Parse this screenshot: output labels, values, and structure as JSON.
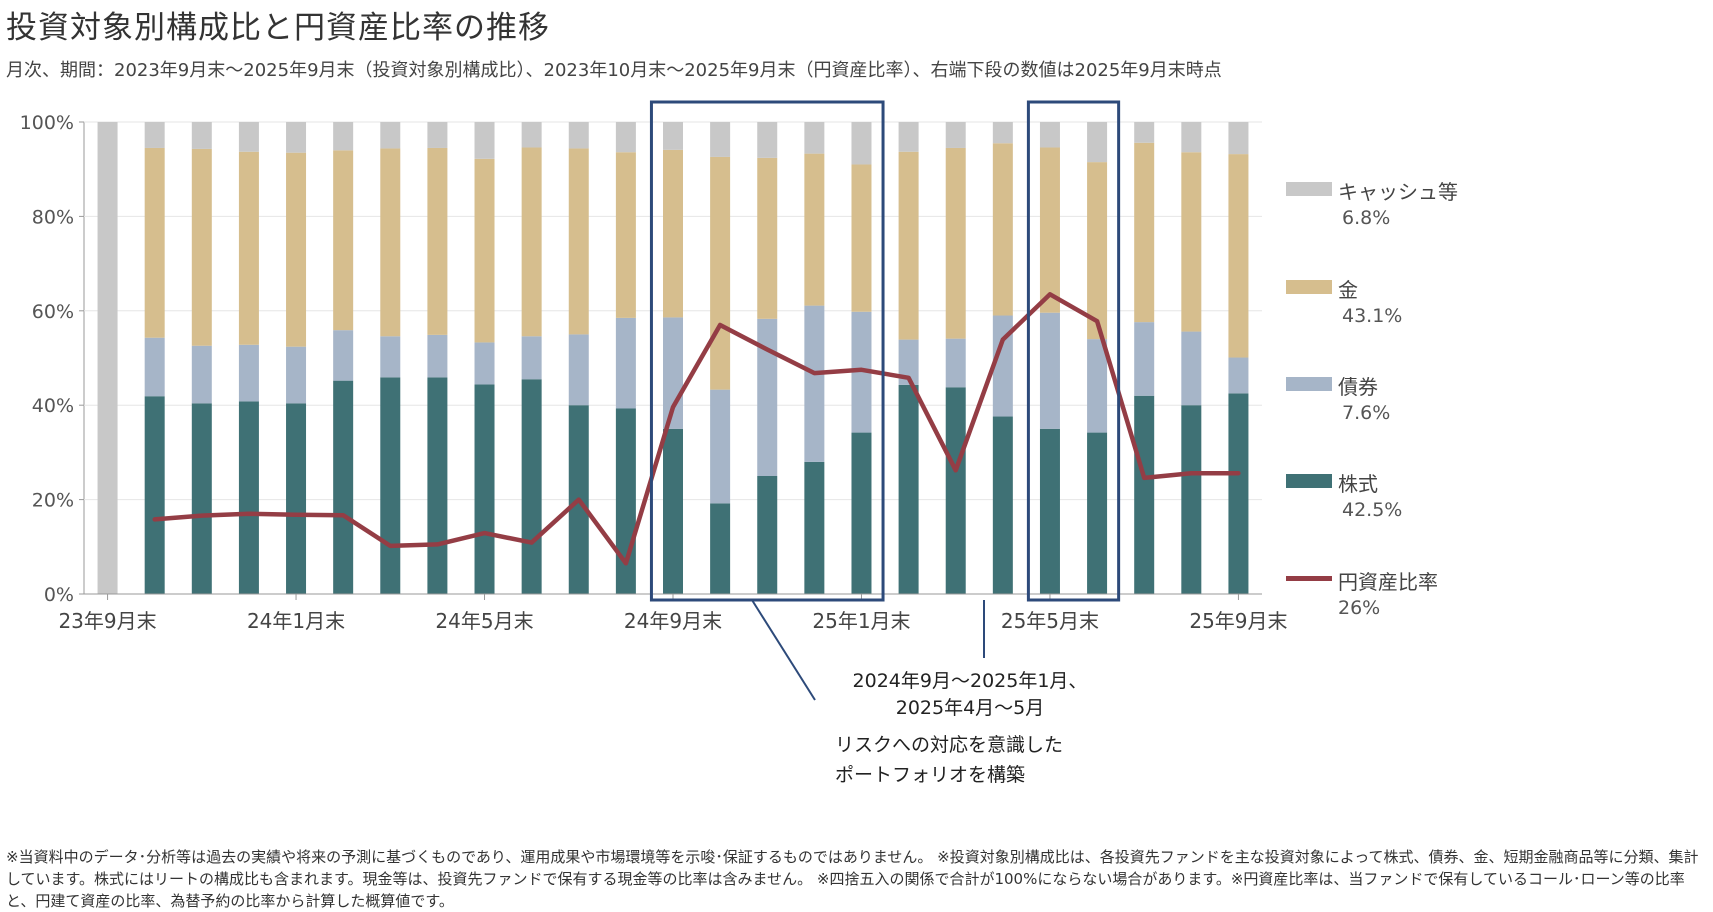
{
  "title": "投資対象別構成比と円資産比率の推移",
  "subtitle": "月次、期間：2023年9月末～2025年9月末（投資対象別構成比）、2023年10月末～2025年9月末（円資産比率）、右端下段の数値は2025年9月末時点",
  "chart_data": {
    "type": "bar",
    "stacked": true,
    "categories": [
      "23年9月末",
      "23年10月末",
      "23年11月末",
      "23年12月末",
      "24年1月末",
      "24年2月末",
      "24年3月末",
      "24年4月末",
      "24年5月末",
      "24年6月末",
      "24年7月末",
      "24年8月末",
      "24年9月末",
      "24年10月末",
      "24年11月末",
      "24年12月末",
      "25年1月末",
      "25年2月末",
      "25年3月末",
      "25年4月末",
      "25年5月末",
      "25年6月末",
      "25年7月末",
      "25年8月末",
      "25年9月末"
    ],
    "x_tick_labels": [
      "23年9月末",
      "24年1月末",
      "24年5月末",
      "24年9月末",
      "25年1月末",
      "25年5月末",
      "25年9月末"
    ],
    "x_tick_indices": [
      0,
      4,
      8,
      12,
      16,
      20,
      24
    ],
    "y_tick_labels": [
      "0%",
      "20%",
      "40%",
      "60%",
      "80%",
      "100%"
    ],
    "ylim": [
      0,
      100
    ],
    "series": [
      {
        "name": "株式",
        "color": "#3f7175",
        "values": [
          0,
          41.9,
          40.4,
          40.8,
          40.4,
          45.2,
          45.9,
          45.9,
          44.4,
          45.5,
          40.0,
          39.3,
          35.0,
          19.2,
          25.0,
          28.0,
          34.2,
          44.3,
          43.8,
          37.6,
          35.0,
          34.2,
          42.0,
          40.0,
          42.5
        ]
      },
      {
        "name": "債券",
        "color": "#a6b5c8",
        "values": [
          0,
          12.4,
          12.2,
          12.0,
          12.0,
          10.7,
          8.7,
          9.0,
          8.9,
          9.1,
          15.0,
          19.2,
          23.6,
          24.1,
          33.3,
          33.1,
          25.6,
          9.6,
          10.3,
          21.4,
          24.6,
          19.8,
          15.6,
          15.6,
          7.6
        ]
      },
      {
        "name": "金",
        "color": "#d6be8e",
        "values": [
          0,
          40.2,
          41.7,
          40.9,
          41.1,
          38.1,
          39.8,
          39.6,
          38.9,
          40.0,
          39.4,
          35.1,
          35.5,
          49.3,
          34.1,
          32.2,
          31.2,
          39.8,
          40.4,
          36.5,
          35.0,
          37.5,
          38.0,
          38.0,
          43.1
        ]
      },
      {
        "name": "キャッシュ等",
        "color": "#c8c8c8",
        "values": [
          100,
          5.5,
          5.7,
          6.3,
          6.5,
          6.0,
          5.6,
          5.5,
          7.8,
          5.4,
          5.6,
          6.4,
          5.9,
          7.4,
          7.6,
          6.7,
          9.0,
          6.3,
          5.5,
          4.5,
          5.4,
          8.5,
          4.4,
          6.4,
          6.8
        ]
      }
    ],
    "line_series": {
      "name": "円資産比率",
      "color": "#943d45",
      "start_index": 1,
      "values": [
        15.8,
        16.6,
        17.0,
        16.8,
        16.7,
        10.2,
        10.5,
        12.9,
        10.9,
        20.0,
        6.5,
        39.6,
        57.0,
        51.8,
        46.8,
        47.5,
        45.8,
        26.2,
        53.9,
        63.5,
        57.8,
        24.6,
        25.6,
        25.6
      ]
    }
  },
  "legend": [
    {
      "label": "キャッシュ等",
      "value": "6.8%",
      "color": "#c8c8c8"
    },
    {
      "label": "金",
      "value": "43.1%",
      "color": "#d6be8e"
    },
    {
      "label": "債券",
      "value": "7.6%",
      "color": "#a6b5c8"
    },
    {
      "label": "株式",
      "value": "42.5%",
      "color": "#3f7175"
    },
    {
      "label": "円資産比率",
      "value": "26%",
      "color": "#943d45"
    }
  ],
  "callout": {
    "period_line1": "2024年9月～2025年1月、",
    "period_line2": "2025年4月～5月",
    "note_line1": "リスクへの対応を意識した",
    "note_line2": "ポートフォリオを構築",
    "highlight_color": "#2d4a7a",
    "highlight_ranges": [
      [
        12,
        16
      ],
      [
        20,
        21
      ]
    ]
  },
  "footnote": "※当資料中のデータ･分析等は過去の実績や将来の予測に基づくものであり、運用成果や市場環境等を示唆･保証するものではありません。 ※投資対象別構成比は、各投資先ファンドを主な投資対象によって株式、債券、金、短期金融商品等に分類、集計しています。株式にはリートの構成比も含まれます。現金等は、投資先ファンドで保有する現金等の比率は含みません。 ※四捨五入の関係で合計が100%にならない場合があります。※円資産比率は、当ファンドで保有しているコール･ローン等の比率と、円建て資産の比率、為替予約の比率から計算した概算値です。"
}
